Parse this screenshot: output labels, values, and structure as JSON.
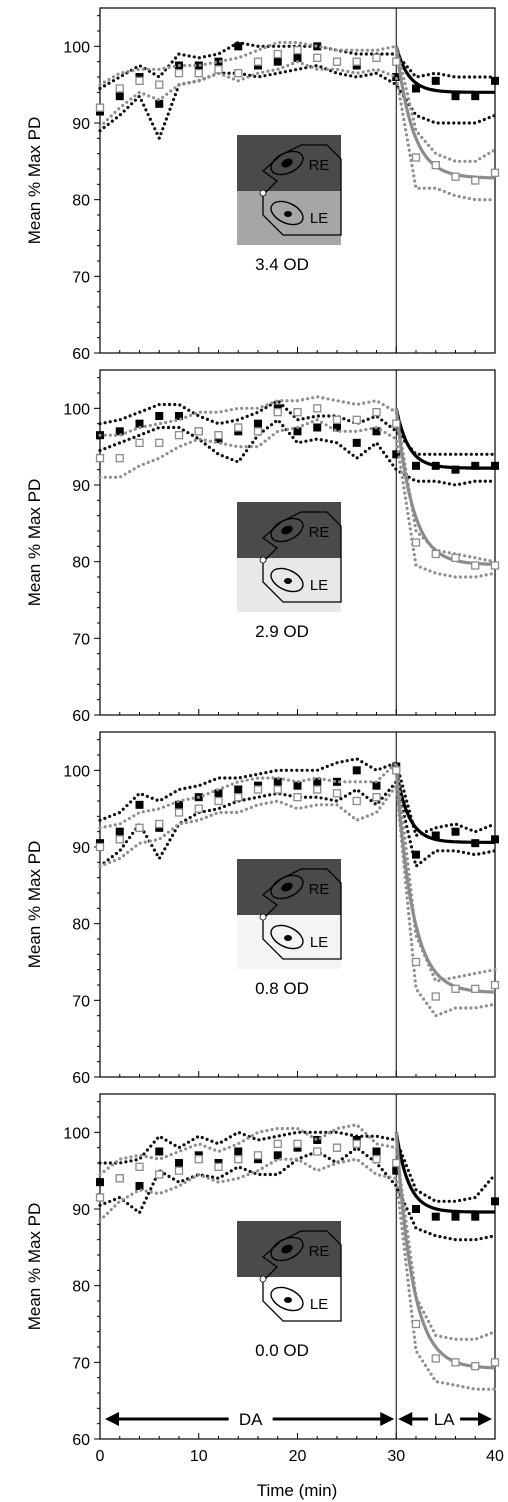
{
  "xlabel": "Time (min)",
  "xticks": [
    0,
    10,
    20,
    30,
    40
  ],
  "phase_labels": {
    "dark": "DA",
    "light": "LA"
  },
  "eye_labels": {
    "right": "RE",
    "left": "LE"
  },
  "colors": {
    "dark_series": "#000000",
    "gray_series": "#8c8c8c",
    "ci_dark": "#111111",
    "ci_gray": "#8f8f8f"
  },
  "chart_data": [
    {
      "type": "scatter",
      "panel": 1,
      "ylabel": "Mean % Max PD",
      "ylim": [
        60,
        105
      ],
      "xlim": [
        0,
        40
      ],
      "yticks": [
        60,
        70,
        80,
        90,
        100
      ],
      "filter_label": "3.4 OD",
      "filter_gray": "#a6a6a6",
      "series": [
        {
          "marker": "filled-square",
          "color": "#000000",
          "x": [
            0,
            2,
            4,
            6,
            8,
            10,
            12,
            14,
            16,
            18,
            20,
            22,
            24,
            26,
            28,
            30,
            32,
            34,
            36,
            38,
            40
          ],
          "y": [
            91.5,
            93.5,
            96,
            92.5,
            97.5,
            97.5,
            98,
            100,
            97.5,
            98,
            98.5,
            100,
            98,
            97.5,
            98.5,
            96,
            94.5,
            95.5,
            93.5,
            93.5,
            95.5
          ],
          "fit_plateau": 94,
          "fit_rate": 0.8,
          "ci_upper": [
            94.5,
            96,
            97.5,
            96,
            99,
            98.5,
            99,
            100.5,
            100,
            100,
            100,
            100,
            99.5,
            99,
            99,
            99,
            96,
            96.5,
            96,
            96,
            96
          ],
          "ci_lower": [
            89,
            91,
            93.5,
            88,
            95,
            95.5,
            96.5,
            96.5,
            96,
            96.5,
            97,
            97.5,
            96.5,
            96,
            96.5,
            95,
            91,
            90,
            90,
            90,
            91
          ]
        },
        {
          "marker": "open-square",
          "color": "#8c8c8c",
          "x": [
            0,
            2,
            4,
            6,
            8,
            10,
            12,
            14,
            16,
            18,
            20,
            22,
            24,
            26,
            28,
            30,
            32,
            34,
            36,
            38,
            40
          ],
          "y": [
            92,
            94.5,
            95.5,
            95,
            96.5,
            96.5,
            97,
            96.5,
            98,
            99,
            99.5,
            98.5,
            98,
            98,
            98.5,
            98,
            85.5,
            84.5,
            83,
            82.5,
            83.5
          ],
          "fit_plateau": 82.8,
          "fit_rate": 0.6,
          "ci_upper": [
            95,
            96.5,
            97,
            97,
            97.5,
            97.5,
            98,
            98.5,
            99.5,
            100.5,
            100.5,
            100,
            99.5,
            99.5,
            99.5,
            100,
            89,
            86,
            85,
            85,
            86.5
          ],
          "ci_lower": [
            89.5,
            92,
            94,
            93,
            95,
            95.5,
            96.5,
            95.5,
            96.5,
            97,
            98,
            97,
            97,
            96.5,
            97,
            96,
            81.5,
            81.5,
            80.5,
            80,
            80
          ]
        }
      ]
    },
    {
      "type": "scatter",
      "panel": 2,
      "ylabel": "Mean % Max PD",
      "ylim": [
        60,
        105
      ],
      "xlim": [
        0,
        40
      ],
      "yticks": [
        60,
        70,
        80,
        90,
        100
      ],
      "filter_label": "2.9 OD",
      "filter_gray": "#e8e8e8",
      "series": [
        {
          "marker": "filled-square",
          "color": "#000000",
          "x": [
            0,
            2,
            4,
            6,
            8,
            10,
            12,
            14,
            16,
            18,
            20,
            22,
            24,
            26,
            28,
            30,
            32,
            34,
            36,
            38,
            40
          ],
          "y": [
            96.5,
            97,
            98,
            99,
            99,
            97,
            96,
            97,
            98,
            100,
            97,
            97.5,
            97.5,
            95.5,
            97,
            94,
            92.5,
            92.5,
            92,
            92.5,
            92.5
          ],
          "fit_plateau": 92.2,
          "fit_rate": 0.8,
          "ci_upper": [
            98,
            98.5,
            99.5,
            100.5,
            100.5,
            99,
            98,
            98.5,
            99.5,
            101,
            98.5,
            99,
            99,
            98,
            99,
            97,
            94,
            94,
            94,
            94,
            94
          ],
          "ci_lower": [
            94.5,
            95.5,
            96.5,
            97.5,
            97.5,
            96,
            94,
            93,
            96.5,
            98.5,
            95.5,
            96,
            95.5,
            93.5,
            95.5,
            92,
            90.5,
            90.5,
            90,
            90.5,
            90.5
          ]
        },
        {
          "marker": "open-square",
          "color": "#8c8c8c",
          "x": [
            0,
            2,
            4,
            6,
            8,
            10,
            12,
            14,
            16,
            18,
            20,
            22,
            24,
            26,
            28,
            30,
            32,
            34,
            36,
            38,
            40
          ],
          "y": [
            93.5,
            93.5,
            95.5,
            95.5,
            96.5,
            97,
            96.5,
            97.5,
            97,
            99.5,
            99.5,
            100,
            98.5,
            98.5,
            99.5,
            98,
            82.5,
            81,
            80.5,
            79.5,
            79.5
          ],
          "fit_plateau": 79.6,
          "fit_rate": 0.6,
          "ci_upper": [
            96.5,
            96.5,
            97.5,
            98,
            98.5,
            99.5,
            99.5,
            100,
            100,
            101,
            101,
            101.5,
            101,
            100.5,
            101,
            99.5,
            84,
            81.5,
            81,
            80.5,
            80
          ],
          "ci_lower": [
            91,
            91,
            92.5,
            93.5,
            95,
            96,
            95.5,
            95,
            95,
            97,
            97.5,
            98.5,
            97,
            97,
            97.5,
            96,
            79.5,
            78.5,
            78,
            78,
            78.5
          ]
        }
      ]
    },
    {
      "type": "scatter",
      "panel": 3,
      "ylabel": "Mean % Max PD",
      "ylim": [
        60,
        105
      ],
      "xlim": [
        0,
        40
      ],
      "yticks": [
        60,
        70,
        80,
        90,
        100
      ],
      "filter_label": "0.8 OD",
      "filter_gray": "#f4f4f4",
      "series": [
        {
          "marker": "filled-square",
          "color": "#000000",
          "x": [
            0,
            2,
            4,
            6,
            8,
            10,
            12,
            14,
            16,
            18,
            20,
            22,
            24,
            26,
            28,
            30,
            32,
            34,
            36,
            38,
            40
          ],
          "y": [
            90.5,
            92,
            95.5,
            92.5,
            95.5,
            96.5,
            97,
            97.5,
            98,
            98.5,
            98,
            98.5,
            98.5,
            100,
            98,
            100.5,
            89,
            91.5,
            92,
            90.5,
            91
          ],
          "fit_plateau": 90.6,
          "fit_rate": 0.8,
          "ci_upper": [
            93.5,
            94.5,
            97,
            96,
            97.5,
            98,
            99,
            99,
            99.5,
            100,
            100,
            100,
            101,
            101.5,
            100,
            101,
            91.5,
            92.5,
            93,
            92,
            93
          ],
          "ci_lower": [
            87.5,
            89.5,
            93,
            88.5,
            93,
            94.5,
            95,
            96,
            96.5,
            97,
            96.5,
            96.5,
            96,
            97.5,
            95.5,
            98.5,
            87.5,
            89.5,
            89.5,
            89,
            89.5
          ]
        },
        {
          "marker": "open-square",
          "color": "#8c8c8c",
          "x": [
            0,
            2,
            4,
            6,
            8,
            10,
            12,
            14,
            16,
            18,
            20,
            22,
            24,
            26,
            28,
            30,
            32,
            34,
            36,
            38,
            40
          ],
          "y": [
            90,
            91,
            92.5,
            93,
            94.5,
            95,
            96,
            96.5,
            97.5,
            97.5,
            96.5,
            97.5,
            97,
            96,
            96.5,
            100,
            75,
            70.5,
            71.5,
            71.5,
            72
          ],
          "fit_plateau": 71,
          "fit_rate": 0.6,
          "ci_upper": [
            92.5,
            93,
            94.5,
            95,
            96,
            96.5,
            97.5,
            98.5,
            99,
            99,
            98.5,
            99,
            98.5,
            98.5,
            98.5,
            101,
            78.5,
            72.5,
            73,
            73.5,
            74
          ],
          "ci_lower": [
            87.5,
            88.5,
            90.5,
            91,
            93,
            93.5,
            94.5,
            94.5,
            95.5,
            96,
            95,
            95.5,
            95.5,
            93.5,
            94.5,
            98,
            71.5,
            68,
            69,
            69,
            69.5
          ]
        }
      ]
    },
    {
      "type": "scatter",
      "panel": 4,
      "ylabel": "Mean % Max PD",
      "ylim": [
        60,
        105
      ],
      "xlim": [
        0,
        40
      ],
      "yticks": [
        60,
        70,
        80,
        90,
        100
      ],
      "filter_label": "0.0 OD",
      "filter_gray": "#ffffff",
      "series": [
        {
          "marker": "filled-square",
          "color": "#000000",
          "x": [
            0,
            2,
            4,
            6,
            8,
            10,
            12,
            14,
            16,
            18,
            20,
            22,
            24,
            26,
            28,
            30,
            32,
            34,
            36,
            38,
            40
          ],
          "y": [
            93.5,
            94,
            93,
            97.5,
            96,
            97,
            96,
            97.5,
            96.5,
            97,
            98,
            99,
            98,
            99,
            97.5,
            95,
            90,
            89,
            89,
            89,
            91
          ],
          "fit_plateau": 89.6,
          "fit_rate": 0.8,
          "ci_upper": [
            96,
            96,
            96.5,
            99.5,
            98,
            99.5,
            98.5,
            100,
            99,
            99.5,
            100,
            100,
            100,
            99.5,
            99.5,
            99,
            92.5,
            91,
            91,
            91.5,
            94.5
          ],
          "ci_lower": [
            90.5,
            91.5,
            89.5,
            95,
            93.5,
            94.5,
            94,
            95.5,
            94.5,
            94.5,
            96.5,
            97.5,
            96,
            98,
            96,
            93,
            87.5,
            86.5,
            86,
            86,
            86.5
          ]
        },
        {
          "marker": "open-square",
          "color": "#8c8c8c",
          "x": [
            0,
            2,
            4,
            6,
            8,
            10,
            12,
            14,
            16,
            18,
            20,
            22,
            24,
            26,
            28,
            30,
            32,
            34,
            36,
            38,
            40
          ],
          "y": [
            91.5,
            94,
            95.5,
            94.5,
            95,
            96.5,
            95.5,
            96.5,
            97,
            98.5,
            98.5,
            97.5,
            98,
            98.5,
            96.5,
            96,
            75,
            70.5,
            70,
            69.5,
            70
          ],
          "fit_plateau": 69.2,
          "fit_rate": 0.6,
          "ci_upper": [
            94.5,
            96.5,
            97,
            96.5,
            97.5,
            98.5,
            97.5,
            98.5,
            100,
            100.5,
            100.5,
            99,
            100.5,
            101,
            98.5,
            98,
            78.5,
            73.5,
            73,
            73,
            74
          ],
          "ci_lower": [
            88.5,
            91,
            92.5,
            92,
            93,
            94.5,
            93.5,
            94,
            95,
            96.5,
            96.5,
            95,
            96,
            96.5,
            94.5,
            94,
            71.5,
            67.5,
            67,
            66.5,
            66.5
          ]
        }
      ]
    }
  ]
}
